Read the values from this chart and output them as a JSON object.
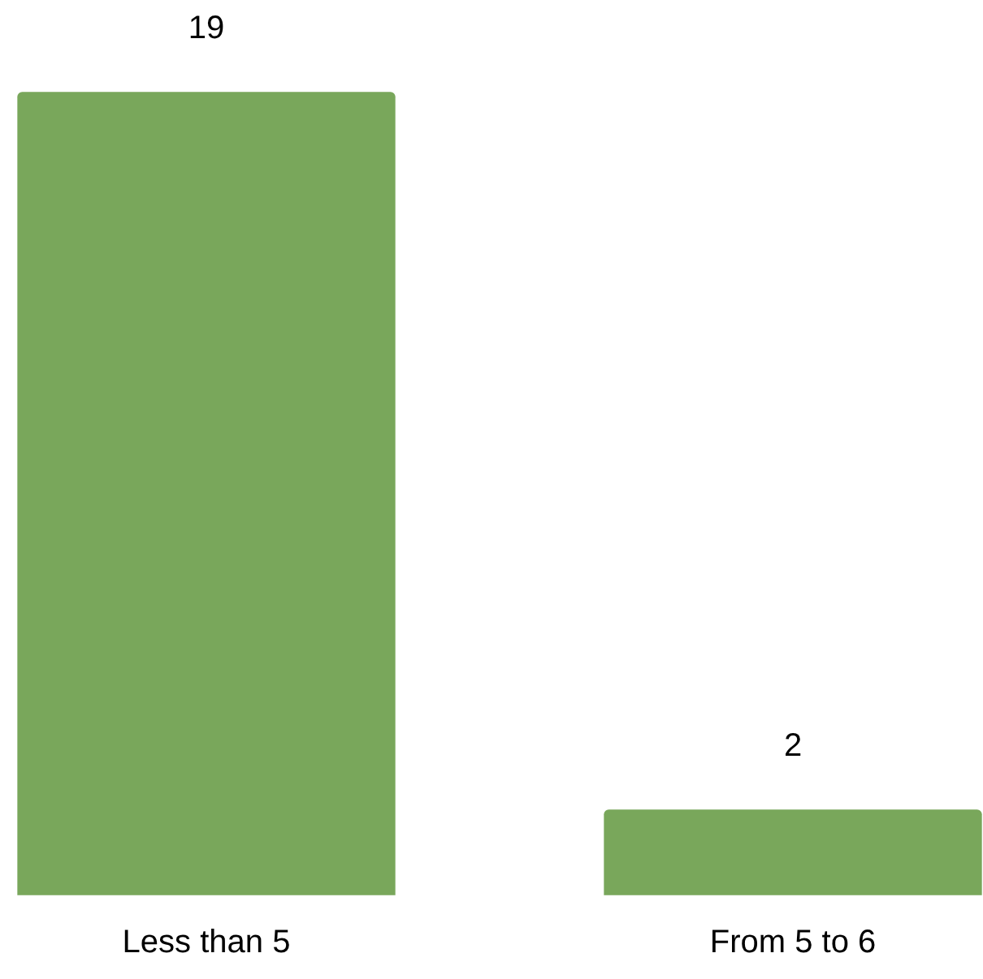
{
  "chart_data": {
    "type": "bar",
    "categories": [
      "Less than 5",
      "From 5 to 6"
    ],
    "values": [
      19,
      2
    ],
    "color": "#79a75b",
    "data_labels": true
  }
}
